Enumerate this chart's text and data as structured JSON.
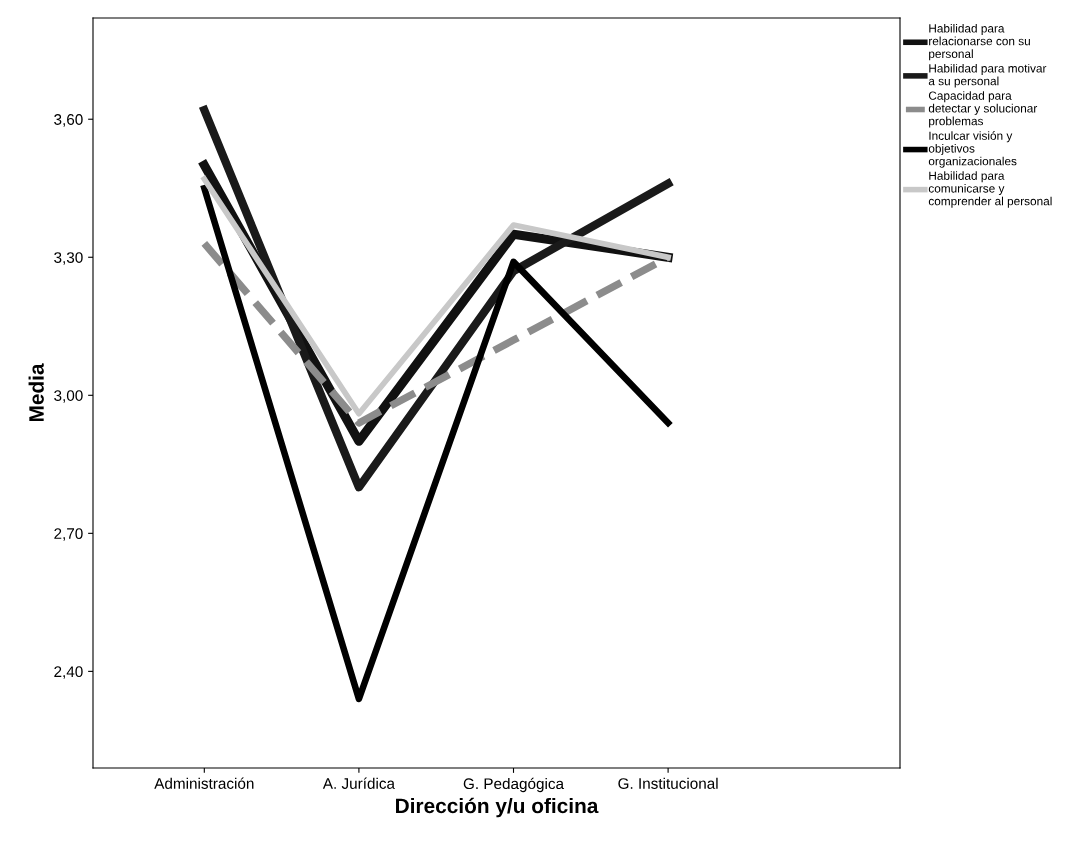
{
  "chart_data": {
    "type": "line",
    "xlabel": "Dirección y/u oficina",
    "ylabel": "Media",
    "categories": [
      "Administración",
      "A. Jurídica",
      "G. Pedagógica",
      "G. Institucional"
    ],
    "ylim": [
      2.19,
      3.82
    ],
    "yticks": [
      {
        "value": 2.4,
        "label": "2,40"
      },
      {
        "value": 2.7,
        "label": "2,70"
      },
      {
        "value": 3.0,
        "label": "3,00"
      },
      {
        "value": 3.3,
        "label": "3,30"
      },
      {
        "value": 3.6,
        "label": "3,60"
      }
    ],
    "grid": false,
    "legend": "top right",
    "marker": "none",
    "series": [
      {
        "name": "Habilidad para relacionarse con su personal",
        "color": "#111111",
        "values": [
          3.5,
          2.9,
          3.35,
          3.3
        ]
      },
      {
        "name": "Habilidad para motivar a su personal",
        "color": "#1a1a1a",
        "values": [
          3.62,
          2.8,
          3.27,
          3.46
        ]
      },
      {
        "name": "Capacidad para detectar y solucionar problemas",
        "color": "#8c8c8c",
        "line_style": "dashed",
        "values": [
          3.33,
          2.94,
          3.12,
          3.3
        ]
      },
      {
        "name": "Inculcar visión y objetivos organizacionales",
        "color": "#000000",
        "values": [
          3.45,
          2.34,
          3.29,
          2.94
        ]
      },
      {
        "name": "Habilidad para comunicarse y comprender al personal",
        "color": "#c8c8c8",
        "values": [
          3.47,
          2.96,
          3.37,
          3.3
        ]
      }
    ]
  }
}
